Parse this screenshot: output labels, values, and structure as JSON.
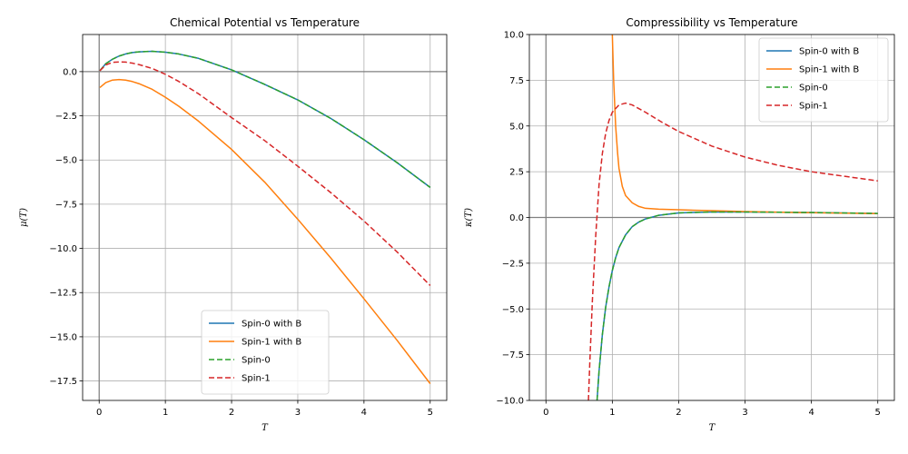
{
  "chart_data": [
    {
      "type": "line",
      "title": "Chemical Potential vs Temperature",
      "xlabel": "T",
      "ylabel": "μ(T)",
      "xlim": [
        -0.25,
        5.25
      ],
      "ylim": [
        -18.6,
        2.1
      ],
      "xticks": [
        "0",
        "1",
        "2",
        "3",
        "4",
        "5"
      ],
      "yticks": [
        "0.0",
        "−2.5",
        "−5.0",
        "−7.5",
        "−10.0",
        "−12.5",
        "−15.0",
        "−17.5"
      ],
      "grid": true,
      "legend_position": "lower-center",
      "series": [
        {
          "name": "Spin-0 with B",
          "color": "#1f77b4",
          "dash": "solid",
          "x": [
            0.01,
            0.1,
            0.2,
            0.3,
            0.4,
            0.5,
            0.6,
            0.8,
            1.0,
            1.2,
            1.5,
            2.0,
            2.5,
            3.0,
            3.5,
            4.0,
            4.5,
            5.0
          ],
          "y": [
            0.05,
            0.45,
            0.7,
            0.88,
            1.0,
            1.08,
            1.12,
            1.15,
            1.1,
            1.0,
            0.75,
            0.1,
            -0.72,
            -1.6,
            -2.65,
            -3.85,
            -5.15,
            -6.55
          ]
        },
        {
          "name": "Spin-1 with B",
          "color": "#ff7f0e",
          "dash": "solid",
          "x": [
            0.01,
            0.1,
            0.2,
            0.3,
            0.4,
            0.5,
            0.6,
            0.8,
            1.0,
            1.2,
            1.5,
            2.0,
            2.5,
            3.0,
            3.5,
            4.0,
            4.5,
            5.0
          ],
          "y": [
            -0.9,
            -0.62,
            -0.48,
            -0.45,
            -0.48,
            -0.56,
            -0.68,
            -1.0,
            -1.45,
            -1.95,
            -2.8,
            -4.4,
            -6.25,
            -8.35,
            -10.55,
            -12.85,
            -15.2,
            -17.65
          ]
        },
        {
          "name": "Spin-0",
          "color": "#2ca02c",
          "dash": "dashed",
          "x": [
            0.01,
            0.1,
            0.2,
            0.3,
            0.4,
            0.5,
            0.6,
            0.8,
            1.0,
            1.2,
            1.5,
            2.0,
            2.5,
            3.0,
            3.5,
            4.0,
            4.5,
            5.0
          ],
          "y": [
            0.05,
            0.45,
            0.7,
            0.88,
            1.0,
            1.08,
            1.12,
            1.15,
            1.1,
            1.0,
            0.75,
            0.1,
            -0.72,
            -1.6,
            -2.65,
            -3.85,
            -5.15,
            -6.55
          ]
        },
        {
          "name": "Spin-1",
          "color": "#d62728",
          "dash": "dashed",
          "x": [
            0.01,
            0.1,
            0.2,
            0.3,
            0.4,
            0.5,
            0.6,
            0.8,
            1.0,
            1.2,
            1.5,
            2.0,
            2.5,
            3.0,
            3.5,
            4.0,
            4.5,
            5.0
          ],
          "y": [
            0.05,
            0.38,
            0.52,
            0.55,
            0.54,
            0.48,
            0.4,
            0.18,
            -0.15,
            -0.55,
            -1.25,
            -2.6,
            -3.9,
            -5.35,
            -6.85,
            -8.45,
            -10.2,
            -12.1
          ]
        }
      ]
    },
    {
      "type": "line",
      "title": "Compressibility vs Temperature",
      "xlabel": "T",
      "ylabel": "κ(T)",
      "xlim": [
        -0.25,
        5.25
      ],
      "ylim": [
        -10,
        10
      ],
      "xticks": [
        "0",
        "1",
        "2",
        "3",
        "4",
        "5"
      ],
      "yticks": [
        "10.0",
        "7.5",
        "5.0",
        "2.5",
        "0.0",
        "−2.5",
        "−5.0",
        "−7.5",
        "−10.0"
      ],
      "grid": true,
      "legend_position": "upper-right",
      "series": [
        {
          "name": "Spin-0 with B",
          "color": "#1f77b4",
          "dash": "solid",
          "x": [
            0.77,
            0.8,
            0.85,
            0.9,
            0.95,
            1.0,
            1.05,
            1.1,
            1.2,
            1.3,
            1.4,
            1.5,
            1.7,
            2.0,
            2.5,
            3.0,
            4.0,
            5.0
          ],
          "y": [
            -10,
            -8.4,
            -6.4,
            -4.9,
            -3.8,
            -2.9,
            -2.2,
            -1.65,
            -0.95,
            -0.5,
            -0.25,
            -0.08,
            0.12,
            0.25,
            0.3,
            0.3,
            0.27,
            0.22
          ]
        },
        {
          "name": "Spin-1 with B",
          "color": "#ff7f0e",
          "dash": "solid",
          "x": [
            1.0,
            1.02,
            1.05,
            1.08,
            1.1,
            1.15,
            1.2,
            1.3,
            1.4,
            1.5,
            1.7,
            2.0,
            2.5,
            3.0,
            4.0,
            5.0
          ],
          "y": [
            10,
            7.5,
            5.0,
            3.5,
            2.7,
            1.7,
            1.2,
            0.8,
            0.6,
            0.5,
            0.45,
            0.42,
            0.37,
            0.32,
            0.26,
            0.21
          ]
        },
        {
          "name": "Spin-0",
          "color": "#2ca02c",
          "dash": "dashed",
          "x": [
            0.77,
            0.8,
            0.85,
            0.9,
            0.95,
            1.0,
            1.05,
            1.1,
            1.2,
            1.3,
            1.4,
            1.5,
            1.7,
            2.0,
            2.5,
            3.0,
            4.0,
            5.0
          ],
          "y": [
            -10,
            -8.4,
            -6.4,
            -4.9,
            -3.8,
            -2.9,
            -2.2,
            -1.65,
            -0.95,
            -0.5,
            -0.25,
            -0.08,
            0.12,
            0.25,
            0.3,
            0.3,
            0.27,
            0.22
          ]
        },
        {
          "name": "Spin-1",
          "color": "#d62728",
          "dash": "dashed",
          "x": [
            0.64,
            0.66,
            0.7,
            0.75,
            0.8,
            0.85,
            0.9,
            0.95,
            1.0,
            1.1,
            1.2,
            1.3,
            1.5,
            1.75,
            2.0,
            2.5,
            3.0,
            3.5,
            4.0,
            4.5,
            5.0
          ],
          "y": [
            -10,
            -8.0,
            -4.5,
            -1.0,
            1.8,
            3.5,
            4.6,
            5.3,
            5.75,
            6.15,
            6.25,
            6.15,
            5.75,
            5.2,
            4.7,
            3.9,
            3.3,
            2.85,
            2.5,
            2.25,
            2.0
          ]
        }
      ]
    }
  ]
}
